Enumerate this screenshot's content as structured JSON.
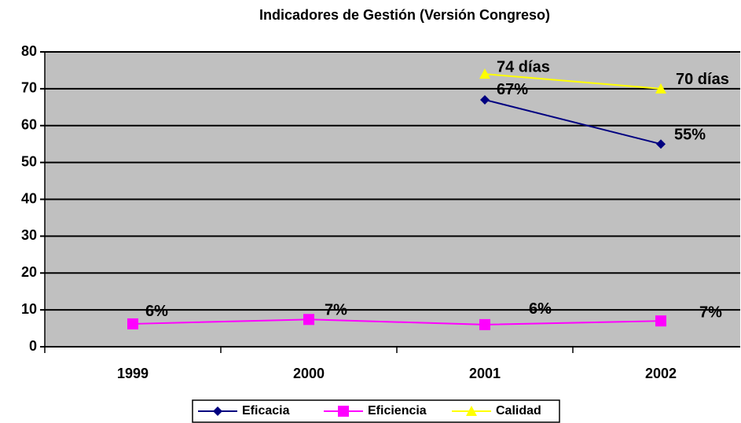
{
  "chart_data": {
    "type": "line",
    "title": "Indicadores de Gestión (Versión Congreso)",
    "categories": [
      "1999",
      "2000",
      "2001",
      "2002"
    ],
    "series": [
      {
        "name": "Eficacia",
        "color": "#000080",
        "marker": "diamond",
        "values": [
          null,
          null,
          67,
          55
        ],
        "value_labels": [
          null,
          null,
          "67%",
          "55%"
        ]
      },
      {
        "name": "Eficiencia",
        "color": "#ff00ff",
        "marker": "square",
        "values": [
          6.2,
          7.4,
          6.0,
          7.0
        ],
        "value_labels": [
          "6%",
          "7%",
          "6%",
          "7%"
        ]
      },
      {
        "name": "Calidad",
        "color": "#ffff00",
        "marker": "triangle",
        "values": [
          null,
          null,
          74,
          70
        ],
        "value_labels": [
          null,
          null,
          "74 días",
          "70 días"
        ]
      }
    ],
    "ylim": [
      0,
      80
    ],
    "yticks": [
      0,
      10,
      20,
      30,
      40,
      50,
      60,
      70,
      80
    ],
    "grid": true,
    "legend": "bottom"
  }
}
